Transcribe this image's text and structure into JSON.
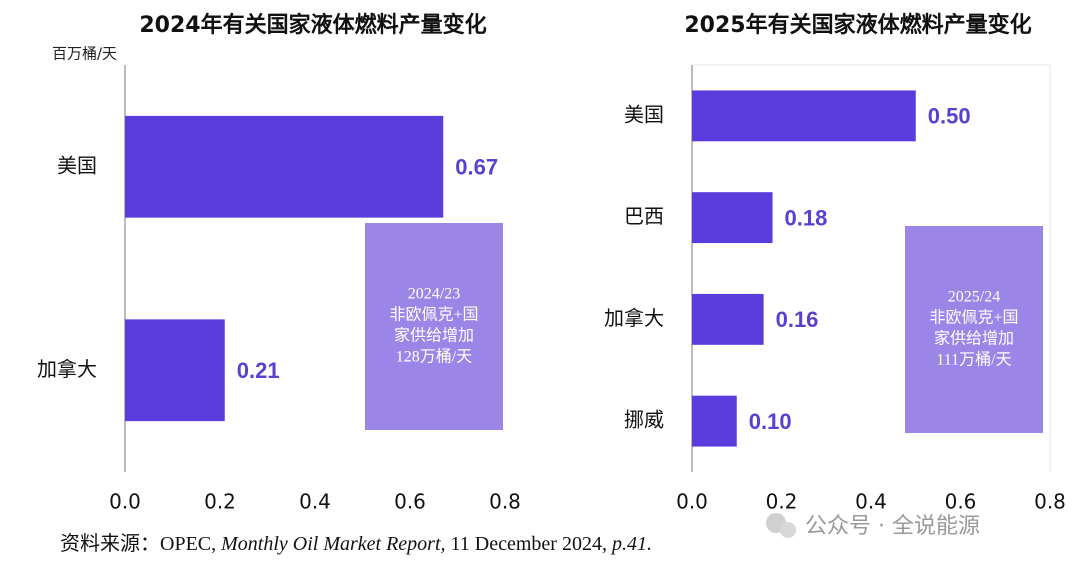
{
  "chart_data": [
    {
      "type": "bar",
      "orientation": "horizontal",
      "title": "2024年有关国家液体燃料产量变化",
      "unit_label": "百万桶/天",
      "categories": [
        "美国",
        "加拿大"
      ],
      "values": [
        0.67,
        0.21
      ],
      "value_labels": [
        "0.67",
        "0.21"
      ],
      "color": "#5a3bdc",
      "xlim": [
        0,
        0.8
      ],
      "xticks": [
        {
          "value": 0,
          "label": "0.0"
        },
        0.2,
        0.4,
        0.6,
        0.8
      ],
      "annotation": [
        "2024/23",
        "非欧佩克+国",
        "家供给增加",
        "128万桶/天"
      ]
    },
    {
      "type": "bar",
      "orientation": "horizontal",
      "title": "2025年有关国家液体燃料产量变化",
      "categories": [
        "美国",
        "巴西",
        "加拿大",
        "挪威"
      ],
      "values": [
        0.5,
        0.18,
        0.16,
        0.1
      ],
      "value_labels": [
        "0.50",
        "0.18",
        "0.16",
        "0.10"
      ],
      "color": "#5a3bdc",
      "xlim": [
        0,
        0.8
      ],
      "xticks": [
        {
          "value": 0,
          "label": "0.0"
        },
        0.2,
        0.4,
        0.6,
        0.8
      ],
      "annotation": [
        "2025/24",
        "非欧佩克+国",
        "家供给增加",
        "111万桶/天"
      ]
    }
  ],
  "source": [
    "资料来源：OPEC, ",
    "Monthly Oil Market Report,",
    " 11 December 2024, ",
    "p.41."
  ],
  "watermark": "公众号 · 全说能源"
}
